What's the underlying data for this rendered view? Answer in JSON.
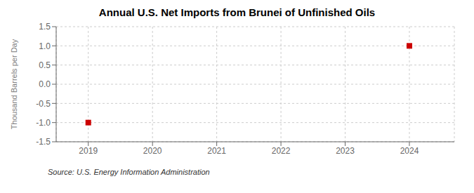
{
  "chart_data": {
    "type": "scatter",
    "title": "Annual U.S. Net Imports from Brunei of Unfinished Oils",
    "ylabel": "Thousand Barrels per Day",
    "source": "Source: U.S. Energy Information Administration",
    "x": [
      2019,
      2024
    ],
    "values": [
      -1.0,
      1.0
    ],
    "color": "#cc0000",
    "marker": "square",
    "xlim": [
      2018.5,
      2024.7
    ],
    "xticks": [
      2019,
      2020,
      2021,
      2022,
      2023,
      2024
    ],
    "ylim": [
      -1.5,
      1.5
    ],
    "yticks": [
      -1.5,
      {
        "value": -1,
        "label": "-1.0"
      },
      -0.5,
      {
        "value": 0,
        "label": "0.0"
      },
      0.5,
      {
        "value": 1,
        "label": "1.0"
      },
      1.5
    ],
    "grid": true
  }
}
